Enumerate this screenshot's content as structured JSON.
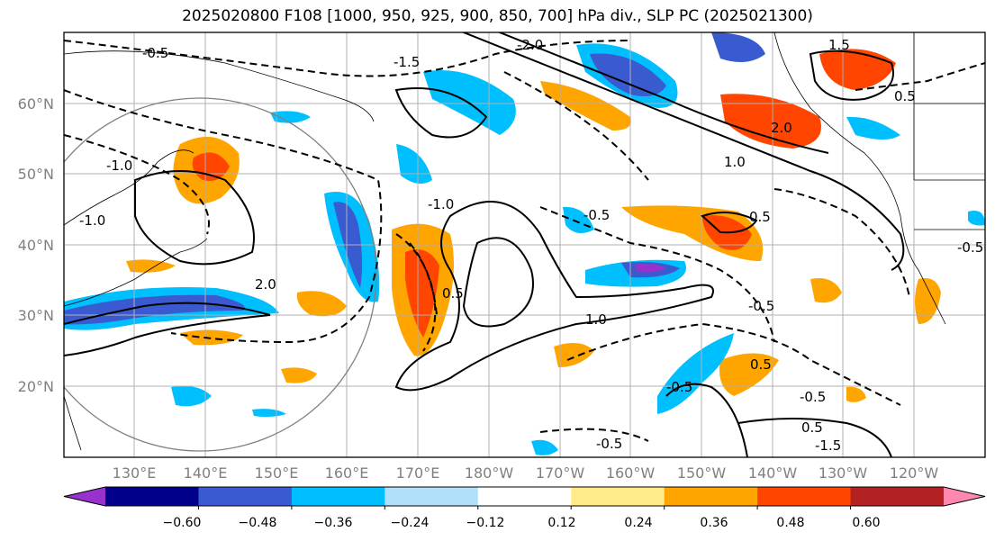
{
  "title": "2025020800 F108 [1000, 950, 925, 900, 850, 700] hPa div., SLP PC (2025021300)",
  "lat_labels": [
    "60°N",
    "50°N",
    "40°N",
    "30°N",
    "20°N"
  ],
  "lon_labels": [
    "130°E",
    "140°E",
    "150°E",
    "160°E",
    "170°E",
    "180°W",
    "170°W",
    "160°W",
    "150°W",
    "140°W",
    "130°W",
    "120°W"
  ],
  "contour_labels": [
    "-0.5",
    "-1.5",
    "-2.0",
    "1.0",
    "1.5",
    "2.0",
    "0.5",
    "-0.5",
    "-1.0",
    "-0.5",
    "0.5",
    "1.0",
    "-0.5",
    "0.5",
    "-1.5",
    "-0.5",
    "2.0",
    "0.5",
    "-1.0",
    "0.5",
    "-0.5",
    "-1.0",
    "-0.5"
  ],
  "colorbar": {
    "ticks": [
      "−0.60",
      "−0.48",
      "−0.36",
      "−0.24",
      "−0.12",
      "0.12",
      "0.24",
      "0.36",
      "0.48",
      "0.60"
    ],
    "colors": [
      "#9932cc",
      "#00008b",
      "#3a5bcf",
      "#00bfff",
      "#b0e0fa",
      "#ffffff",
      "#ffeb8a",
      "#ffa500",
      "#ff4500",
      "#b22222",
      "#ff88b0"
    ]
  }
}
